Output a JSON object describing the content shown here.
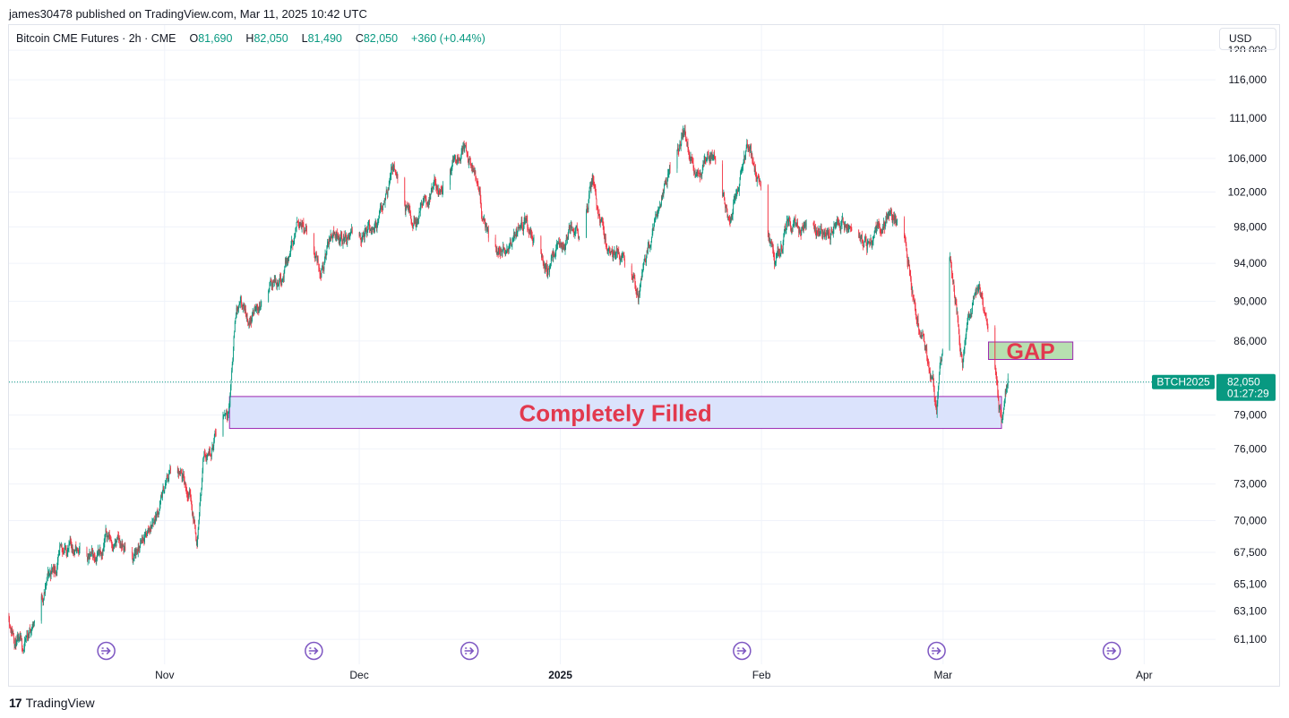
{
  "header": {
    "publisher": "james30478 published on TradingView.com, Mar 11, 2025 10:42 UTC"
  },
  "legend": {
    "symbol": "Bitcoin CME Futures · 2h · CME",
    "o_label": "O",
    "o": "81,690",
    "h_label": "H",
    "h": "82,050",
    "l_label": "L",
    "l": "81,490",
    "c_label": "C",
    "c": "82,050",
    "change": "+360 (+0.44%)"
  },
  "currency": "USD",
  "footer": {
    "logo_mark": "17",
    "brand": "TradingView"
  },
  "colors": {
    "up": "#089981",
    "down": "#f23645",
    "zone_fill": "#dbe3fc",
    "zone_border": "#9c27b0",
    "gap_fill": "#b7e0b0",
    "annotation_text": "#e2394e",
    "event_icon": "#7e57c2",
    "price_line": "#089981"
  },
  "chart_data": {
    "type": "candlestick",
    "y_scale": "log",
    "ylim": [
      59500,
      121000
    ],
    "y_ticks": [
      "120,000",
      "116,000",
      "111,000",
      "106,000",
      "102,000",
      "98,000",
      "94,000",
      "90,000",
      "86,000",
      "82,000",
      "79,000",
      "76,000",
      "73,000",
      "70,000",
      "67,500",
      "65,100",
      "63,100",
      "61,100"
    ],
    "x_ticks": [
      {
        "label": "Nov",
        "date": "2024-11-01",
        "bold": false
      },
      {
        "label": "Dec",
        "date": "2024-12-01",
        "bold": false
      },
      {
        "label": "2025",
        "date": "2025-01-01",
        "bold": true
      },
      {
        "label": "Feb",
        "date": "2025-02-01",
        "bold": false
      },
      {
        "label": "Mar",
        "date": "2025-03-01",
        "bold": false
      },
      {
        "label": "Apr",
        "date": "2025-04-01",
        "bold": false
      }
    ],
    "xlim": [
      "2024-10-08",
      "2025-04-12"
    ],
    "price_path": [
      [
        "2024-10-08",
        62800
      ],
      [
        "2024-10-10",
        60000
      ],
      [
        "2024-10-14",
        65500
      ],
      [
        "2024-10-17",
        68000
      ],
      [
        "2024-10-21",
        66800
      ],
      [
        "2024-10-23",
        69000
      ],
      [
        "2024-10-27",
        67000
      ],
      [
        "2024-10-29",
        68500
      ],
      [
        "2024-10-31",
        71000
      ],
      [
        "2024-11-02",
        74200
      ],
      [
        "2024-11-05",
        72000
      ],
      [
        "2024-11-06",
        68500
      ],
      [
        "2024-11-07",
        75500
      ],
      [
        "2024-11-09",
        77500
      ],
      [
        "2024-11-11",
        80500
      ],
      [
        "2024-11-12",
        89500
      ],
      [
        "2024-11-14",
        88000
      ],
      [
        "2024-11-17",
        91000
      ],
      [
        "2024-11-20",
        94000
      ],
      [
        "2024-11-22",
        99500
      ],
      [
        "2024-11-25",
        93500
      ],
      [
        "2024-11-27",
        97500
      ],
      [
        "2024-12-01",
        96500
      ],
      [
        "2024-12-04",
        98500
      ],
      [
        "2024-12-06",
        104800
      ],
      [
        "2024-12-09",
        98000
      ],
      [
        "2024-12-12",
        101500
      ],
      [
        "2024-12-14",
        103000
      ],
      [
        "2024-12-17",
        108500
      ],
      [
        "2024-12-19",
        103000
      ],
      [
        "2024-12-21",
        95500
      ],
      [
        "2024-12-24",
        95000
      ],
      [
        "2024-12-26",
        99500
      ],
      [
        "2024-12-30",
        93500
      ],
      [
        "2025-01-01",
        96000
      ],
      [
        "2025-01-04",
        98500
      ],
      [
        "2025-01-06",
        103500
      ],
      [
        "2025-01-08",
        96000
      ],
      [
        "2025-01-10",
        95000
      ],
      [
        "2025-01-13",
        91000
      ],
      [
        "2025-01-16",
        100000
      ],
      [
        "2025-01-20",
        109500
      ],
      [
        "2025-01-22",
        104500
      ],
      [
        "2025-01-25",
        106000
      ],
      [
        "2025-01-27",
        99000
      ],
      [
        "2025-01-30",
        106500
      ],
      [
        "2025-02-01",
        103000
      ],
      [
        "2025-02-03",
        93500
      ],
      [
        "2025-02-05",
        98000
      ],
      [
        "2025-02-09",
        97000
      ],
      [
        "2025-02-14",
        98000
      ],
      [
        "2025-02-18",
        96000
      ],
      [
        "2025-02-21",
        99500
      ],
      [
        "2025-02-23",
        97000
      ],
      [
        "2025-02-25",
        88500
      ],
      [
        "2025-02-28",
        80000
      ],
      [
        "2025-03-01",
        86000
      ],
      [
        "2025-03-02",
        95000
      ],
      [
        "2025-03-04",
        84000
      ],
      [
        "2025-03-06",
        92500
      ],
      [
        "2025-03-07",
        90500
      ],
      [
        "2025-03-08",
        86500
      ],
      [
        "2025-03-10",
        78500
      ],
      [
        "2025-03-11",
        82050
      ]
    ],
    "last_price": {
      "symbol": "BTCH2025",
      "value": "82,050",
      "countdown": "01:27:29",
      "price": 82050
    },
    "annotations": [
      {
        "text": "Completely Filled",
        "kind": "zone",
        "from": "2024-11-11",
        "to": "2025-03-10",
        "low": 77800,
        "high": 80700
      },
      {
        "text": "GAP",
        "kind": "gap",
        "from": "2025-03-08",
        "to": "2025-03-21",
        "low": 84200,
        "high": 85900
      }
    ],
    "events": [
      "2024-10-23",
      "2024-11-24",
      "2024-12-18",
      "2025-01-29",
      "2025-02-28",
      "2025-03-27"
    ]
  }
}
